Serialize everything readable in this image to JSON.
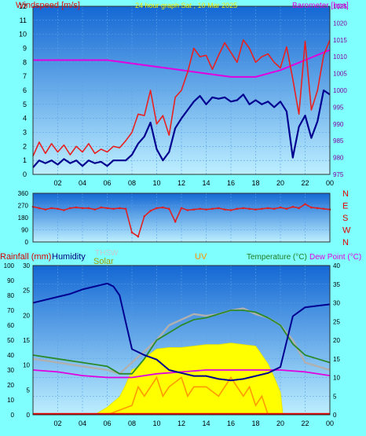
{
  "colors": {
    "page_bg": "#80ffff",
    "plot_top": "#1a70d8",
    "plot_bottom": "#b8ecff",
    "gust": "#e82020",
    "avg_wind": "#000090",
    "barometer": "#e000e0",
    "direction": "#e02020",
    "humidity": "#000090",
    "temperature": "#2a8a2a",
    "dew_point": "#e000e0",
    "thsw": "#b0b0b0",
    "solar": "#ffff00",
    "uv": "#ff9a00",
    "rain": "#e00000",
    "title_yellow": "#ffff00"
  },
  "texts": {
    "windspeed_title": "Windspeed [m/s]",
    "header_title": "24 hour graph Sat , 10 Mar 2025",
    "barometer_title": "Barometer [hpa]",
    "rain_title": "Rainfall (mm)",
    "humidity_title": "Humidity",
    "thsw_title": "THSW",
    "solar_title": "Solar",
    "uv_title": "UV",
    "temp_title": "Temperature (°C)",
    "dew_title": "Dew Point (°C)"
  },
  "chart_data": [
    {
      "id": "wind",
      "type": "line",
      "x_ticks": [
        "02",
        "04",
        "06",
        "08",
        "10",
        "12",
        "14",
        "16",
        "18",
        "20",
        "22",
        "00"
      ],
      "xlim": [
        0,
        24
      ],
      "ylim_left": [
        0,
        12
      ],
      "y_ticks_left": [
        0,
        1,
        2,
        3,
        4,
        5,
        6,
        7,
        8,
        9,
        10,
        11,
        12
      ],
      "ylim_right": [
        975,
        1025
      ],
      "y_ticks_right": [
        975,
        980,
        985,
        990,
        995,
        1000,
        1005,
        1010,
        1015,
        1020,
        1025
      ],
      "series": [
        {
          "name": "Gust",
          "axis": "left",
          "x": [
            0,
            0.5,
            1,
            1.5,
            2,
            2.5,
            3,
            3.5,
            4,
            4.5,
            5,
            5.5,
            6,
            6.5,
            7,
            7.5,
            8,
            8.5,
            9,
            9.5,
            10,
            10.5,
            11,
            11.5,
            12,
            12.5,
            13,
            13.5,
            14,
            14.5,
            15,
            15.5,
            16,
            16.5,
            17,
            17.5,
            18,
            18.5,
            19,
            19.5,
            20,
            20.5,
            21,
            21.5,
            22,
            22.5,
            23,
            23.5,
            24
          ],
          "values": [
            1.3,
            2.3,
            1.5,
            2.2,
            1.6,
            2.1,
            1.4,
            2.0,
            1.6,
            2.2,
            1.5,
            1.8,
            1.6,
            2.0,
            1.9,
            2.4,
            3.0,
            4.3,
            4.2,
            6.0,
            3.6,
            4.2,
            2.8,
            5.5,
            6.0,
            7.3,
            9.0,
            8.4,
            8.5,
            7.5,
            8.5,
            9.4,
            8.7,
            8.0,
            9.6,
            9.0,
            8.0,
            8.4,
            8.6,
            8.0,
            7.6,
            9.1,
            6.8,
            4.3,
            9.5,
            4.6,
            6.0,
            8.5,
            9.6
          ]
        },
        {
          "name": "Average",
          "axis": "left",
          "x": [
            0,
            0.5,
            1,
            1.5,
            2,
            2.5,
            3,
            3.5,
            4,
            4.5,
            5,
            5.5,
            6,
            6.5,
            7,
            7.5,
            8,
            8.5,
            9,
            9.5,
            10,
            10.5,
            11,
            11.5,
            12,
            12.5,
            13,
            13.5,
            14,
            14.5,
            15,
            15.5,
            16,
            16.5,
            17,
            17.5,
            18,
            18.5,
            19,
            19.5,
            20,
            20.5,
            21,
            21.5,
            22,
            22.5,
            23,
            23.5,
            24
          ],
          "values": [
            0.5,
            1.0,
            0.8,
            1.0,
            0.7,
            1.1,
            0.8,
            1.0,
            0.6,
            1.0,
            0.8,
            0.9,
            0.6,
            1.0,
            1.0,
            1.0,
            1.4,
            2.2,
            2.7,
            3.7,
            1.8,
            1.0,
            1.6,
            3.3,
            4.0,
            4.6,
            5.2,
            5.6,
            5.0,
            5.5,
            5.4,
            5.5,
            5.2,
            5.3,
            5.7,
            5.0,
            5.3,
            5.0,
            5.2,
            4.8,
            5.2,
            4.5,
            1.2,
            3.4,
            4.2,
            2.6,
            3.8,
            6.0,
            5.7
          ]
        },
        {
          "name": "Barometer",
          "axis": "right",
          "x": [
            0,
            2,
            4,
            6,
            8,
            10,
            12,
            14,
            16,
            18,
            20,
            22,
            24
          ],
          "values": [
            1009,
            1009,
            1009,
            1009,
            1008,
            1007,
            1006,
            1005,
            1004,
            1004,
            1006,
            1009,
            1012
          ]
        }
      ]
    },
    {
      "id": "direction",
      "type": "scatter",
      "ylim": [
        0,
        360
      ],
      "y_ticks": [
        0,
        90,
        180,
        270,
        360
      ],
      "y_labels_right": [
        "N",
        "W",
        "S",
        "E",
        "N"
      ],
      "series": [
        {
          "name": "Direction",
          "x": [
            0,
            0.5,
            1,
            1.5,
            2,
            2.5,
            3,
            3.5,
            4,
            4.5,
            5,
            5.5,
            6,
            6.5,
            7,
            7.5,
            8,
            8.5,
            9,
            9.5,
            10,
            10.5,
            11,
            11.5,
            12,
            12.5,
            13,
            13.5,
            14,
            14.5,
            15,
            15.5,
            16,
            16.5,
            17,
            17.5,
            18,
            18.5,
            19,
            19.5,
            20,
            20.5,
            21,
            21.5,
            22,
            22.5,
            23,
            23.5,
            24
          ],
          "values": [
            260,
            250,
            240,
            250,
            245,
            235,
            250,
            255,
            250,
            250,
            240,
            255,
            250,
            245,
            250,
            245,
            70,
            40,
            190,
            230,
            250,
            255,
            245,
            150,
            250,
            235,
            240,
            245,
            240,
            245,
            250,
            240,
            235,
            245,
            250,
            245,
            240,
            245,
            250,
            245,
            255,
            245,
            260,
            250,
            280,
            255,
            250,
            245,
            240
          ]
        }
      ]
    },
    {
      "id": "weather",
      "type": "line",
      "x_ticks": [
        "02",
        "04",
        "06",
        "08",
        "10",
        "12",
        "14",
        "16",
        "18",
        "20",
        "22",
        "00"
      ],
      "xlim": [
        0,
        24
      ],
      "humidity_ticks": [
        0,
        10,
        20,
        30,
        40,
        50,
        60,
        70,
        80,
        90,
        100
      ],
      "rain_ticks": [
        0,
        5,
        10,
        15,
        20,
        25,
        30
      ],
      "temp_ticks": [
        0,
        5,
        10,
        15,
        20,
        25,
        30,
        35,
        40
      ],
      "series": [
        {
          "name": "Humidity",
          "unit": "%",
          "x": [
            0,
            1,
            2,
            3,
            4,
            5,
            6,
            6.5,
            7,
            7.5,
            8,
            9,
            10,
            11,
            12,
            13,
            14,
            15,
            16,
            17,
            18,
            19,
            20,
            21,
            22,
            23,
            24
          ],
          "values": [
            75,
            77,
            79,
            81,
            84,
            86,
            88,
            86,
            80,
            62,
            44,
            40,
            37,
            30,
            28,
            26,
            26,
            24,
            23,
            24,
            26,
            28,
            32,
            66,
            72,
            73,
            74
          ]
        },
        {
          "name": "Temperature",
          "unit": "°C",
          "x": [
            0,
            2,
            4,
            6,
            7,
            8,
            9,
            10,
            11,
            12,
            13,
            14,
            15,
            16,
            17,
            18,
            19,
            20,
            21,
            22,
            23,
            24
          ],
          "values": [
            16,
            15,
            14,
            13,
            11,
            11,
            15,
            20,
            22,
            24,
            25.5,
            26,
            27,
            28,
            28,
            27.5,
            26,
            24,
            19,
            16,
            15,
            14
          ]
        },
        {
          "name": "Dew Point",
          "unit": "°C",
          "x": [
            0,
            2,
            4,
            6,
            8,
            10,
            12,
            14,
            16,
            18,
            20,
            22,
            24
          ],
          "values": [
            12,
            11.5,
            10.5,
            10,
            10,
            11,
            11.5,
            12,
            12,
            12,
            12,
            11.5,
            10.5
          ]
        },
        {
          "name": "THSW",
          "unit": "°C",
          "x": [
            0,
            2,
            4,
            6,
            7,
            8,
            9,
            10,
            11,
            12,
            13,
            14,
            15,
            16,
            17,
            18,
            19,
            20,
            21,
            22,
            23,
            24
          ],
          "values": [
            15,
            14,
            13,
            12,
            11,
            14,
            17,
            20,
            24,
            25.5,
            27,
            26.5,
            27,
            28,
            28.5,
            27,
            26,
            24,
            20,
            14,
            13,
            12
          ]
        },
        {
          "name": "Solar",
          "unit": "W/m²",
          "x": [
            5,
            6,
            7,
            7.5,
            8,
            8.5,
            9,
            10,
            11,
            12,
            13,
            14,
            15,
            16,
            17,
            18,
            19,
            19.5,
            20,
            20.2
          ],
          "values": [
            0,
            5,
            12,
            20,
            30,
            32,
            38,
            44,
            45,
            45,
            46,
            47,
            47,
            48,
            47,
            46,
            34,
            25,
            15,
            0
          ]
        },
        {
          "name": "UV",
          "x": [
            6,
            8,
            8.5,
            9,
            10,
            10.5,
            11,
            12,
            12.5,
            13,
            14,
            15,
            16,
            17,
            17.5,
            18,
            18.5,
            19
          ],
          "values": [
            0,
            1,
            3,
            2,
            4,
            2,
            3,
            4,
            2,
            3,
            3,
            2,
            4,
            2,
            3,
            1,
            2,
            0
          ]
        },
        {
          "name": "Rain",
          "unit": "mm",
          "x": [
            0,
            24
          ],
          "values": [
            0,
            0
          ]
        }
      ]
    }
  ]
}
